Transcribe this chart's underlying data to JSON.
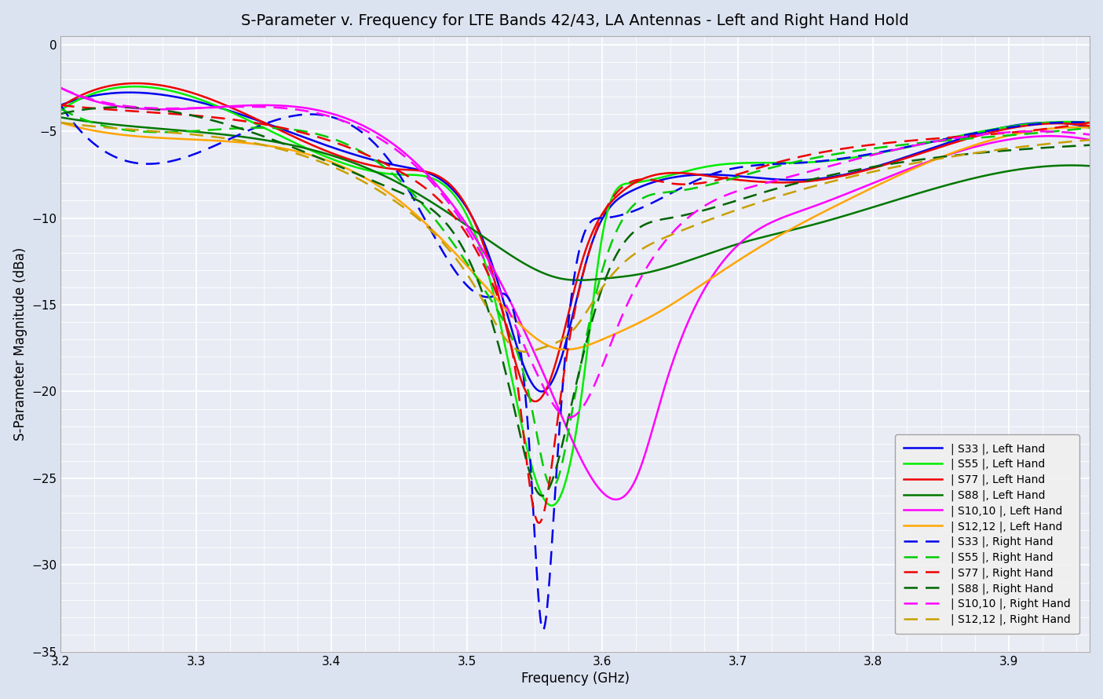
{
  "title": "S-Parameter v. Frequency for LTE Bands 42/43, LA Antennas - Left and Right Hand Hold",
  "xlabel": "Frequency (GHz)",
  "ylabel": "S-Parameter Magnitude (dBa)",
  "xlim": [
    3.2,
    3.96
  ],
  "ylim": [
    -35,
    0.5
  ],
  "xticks": [
    3.2,
    3.3,
    3.4,
    3.5,
    3.6,
    3.7,
    3.8,
    3.9
  ],
  "yticks": [
    0,
    -5,
    -10,
    -15,
    -20,
    -25,
    -30,
    -35
  ],
  "fig_facecolor": "#dce3f0",
  "ax_facecolor": "#eaecf5",
  "grid_color": "#ffffff",
  "series": [
    {
      "label": "| S33 |, Left Hand",
      "color": "#0000ee",
      "linestyle": "solid",
      "linewidth": 1.8,
      "pts_x": [
        3.2,
        3.35,
        3.45,
        3.52,
        3.555,
        3.57,
        3.59,
        3.62,
        3.68,
        3.75,
        3.85,
        3.96
      ],
      "pts_y": [
        -3.5,
        -4.5,
        -7.0,
        -13.0,
        -20.0,
        -18.0,
        -12.0,
        -8.5,
        -7.5,
        -7.8,
        -5.8,
        -4.8
      ]
    },
    {
      "label": "| S55 |, Left Hand",
      "color": "#00ee00",
      "linestyle": "solid",
      "linewidth": 1.8,
      "pts_x": [
        3.2,
        3.35,
        3.45,
        3.52,
        3.565,
        3.585,
        3.6,
        3.62,
        3.68,
        3.75,
        3.85,
        3.96
      ],
      "pts_y": [
        -3.8,
        -4.8,
        -7.5,
        -14.5,
        -26.5,
        -20.0,
        -11.0,
        -8.0,
        -7.0,
        -6.8,
        -5.5,
        -4.5
      ]
    },
    {
      "label": "| S77 |, Left Hand",
      "color": "#ee0000",
      "linestyle": "solid",
      "linewidth": 1.8,
      "pts_x": [
        3.2,
        3.35,
        3.45,
        3.52,
        3.548,
        3.565,
        3.585,
        3.61,
        3.68,
        3.75,
        3.85,
        3.96
      ],
      "pts_y": [
        -3.6,
        -4.5,
        -7.2,
        -13.5,
        -20.5,
        -18.5,
        -12.5,
        -8.8,
        -7.6,
        -7.9,
        -5.9,
        -4.7
      ]
    },
    {
      "label": "| S88 |, Left Hand",
      "color": "#007700",
      "linestyle": "solid",
      "linewidth": 1.8,
      "pts_x": [
        3.2,
        3.35,
        3.45,
        3.52,
        3.57,
        3.6,
        3.63,
        3.65,
        3.7,
        3.75,
        3.85,
        3.96
      ],
      "pts_y": [
        -4.2,
        -5.5,
        -8.0,
        -11.5,
        -13.5,
        -13.5,
        -13.2,
        -12.8,
        -11.5,
        -10.5,
        -8.2,
        -7.0
      ]
    },
    {
      "label": "| S10,10 |, Left Hand",
      "color": "#ff00ff",
      "linestyle": "solid",
      "linewidth": 1.8,
      "pts_x": [
        3.2,
        3.35,
        3.45,
        3.52,
        3.565,
        3.6,
        3.625,
        3.645,
        3.68,
        3.75,
        3.85,
        3.96
      ],
      "pts_y": [
        -2.5,
        -3.5,
        -6.0,
        -13.0,
        -20.5,
        -25.8,
        -25.0,
        -20.0,
        -13.5,
        -9.5,
        -6.5,
        -5.5
      ]
    },
    {
      "label": "| S12,12 |, Left Hand",
      "color": "#ffa500",
      "linestyle": "solid",
      "linewidth": 1.8,
      "pts_x": [
        3.2,
        3.35,
        3.45,
        3.52,
        3.565,
        3.6,
        3.64,
        3.68,
        3.72,
        3.78,
        3.85,
        3.96
      ],
      "pts_y": [
        -4.5,
        -5.8,
        -9.0,
        -14.5,
        -17.5,
        -17.0,
        -15.5,
        -13.5,
        -11.5,
        -9.0,
        -6.5,
        -4.8
      ]
    },
    {
      "label": "| S33 |, Right Hand",
      "color": "#0000ee",
      "linestyle": "dashed",
      "linewidth": 1.8,
      "pts_x": [
        3.2,
        3.35,
        3.45,
        3.52,
        3.548,
        3.555,
        3.565,
        3.575,
        3.6,
        3.68,
        3.75,
        3.85,
        3.96
      ],
      "pts_y": [
        -3.5,
        -4.6,
        -7.5,
        -14.5,
        -25.5,
        -33.5,
        -26.0,
        -16.0,
        -10.0,
        -7.5,
        -6.8,
        -5.5,
        -4.5
      ]
    },
    {
      "label": "| S55 |, Right Hand",
      "color": "#00cc00",
      "linestyle": "dashed",
      "linewidth": 1.8,
      "pts_x": [
        3.2,
        3.35,
        3.45,
        3.52,
        3.548,
        3.562,
        3.578,
        3.6,
        3.65,
        3.72,
        3.82,
        3.96
      ],
      "pts_y": [
        -3.7,
        -4.8,
        -7.8,
        -15.0,
        -21.0,
        -25.5,
        -21.0,
        -13.0,
        -8.5,
        -7.2,
        -5.8,
        -4.8
      ]
    },
    {
      "label": "| S77 |, Right Hand",
      "color": "#ee0000",
      "linestyle": "dashed",
      "linewidth": 1.8,
      "pts_x": [
        3.2,
        3.35,
        3.45,
        3.52,
        3.538,
        3.552,
        3.568,
        3.59,
        3.65,
        3.72,
        3.82,
        3.96
      ],
      "pts_y": [
        -3.5,
        -4.6,
        -7.3,
        -14.0,
        -20.0,
        -27.5,
        -21.0,
        -12.0,
        -8.0,
        -7.0,
        -5.6,
        -4.5
      ]
    },
    {
      "label": "| S88 |, Right Hand",
      "color": "#006400",
      "linestyle": "dashed",
      "linewidth": 1.8,
      "pts_x": [
        3.2,
        3.35,
        3.45,
        3.51,
        3.535,
        3.555,
        3.575,
        3.6,
        3.65,
        3.72,
        3.82,
        3.96
      ],
      "pts_y": [
        -4.0,
        -5.3,
        -8.5,
        -14.0,
        -21.0,
        -26.0,
        -21.5,
        -14.0,
        -10.0,
        -8.5,
        -6.8,
        -5.8
      ]
    },
    {
      "label": "| S10,10 |, Right Hand",
      "color": "#ff00ff",
      "linestyle": "dashed",
      "linewidth": 1.8,
      "pts_x": [
        3.2,
        3.35,
        3.45,
        3.52,
        3.555,
        3.575,
        3.592,
        3.61,
        3.65,
        3.72,
        3.82,
        3.96
      ],
      "pts_y": [
        -2.5,
        -3.6,
        -6.2,
        -13.5,
        -19.5,
        -21.5,
        -20.0,
        -16.5,
        -11.0,
        -8.0,
        -6.0,
        -5.2
      ]
    },
    {
      "label": "| S12,12 |, Right Hand",
      "color": "#c8a000",
      "linestyle": "dashed",
      "linewidth": 1.8,
      "pts_x": [
        3.2,
        3.35,
        3.45,
        3.51,
        3.535,
        3.555,
        3.578,
        3.6,
        3.65,
        3.72,
        3.82,
        3.96
      ],
      "pts_y": [
        -4.5,
        -5.8,
        -9.2,
        -14.5,
        -17.5,
        -17.5,
        -16.5,
        -14.0,
        -11.0,
        -9.0,
        -7.0,
        -5.5
      ]
    }
  ]
}
